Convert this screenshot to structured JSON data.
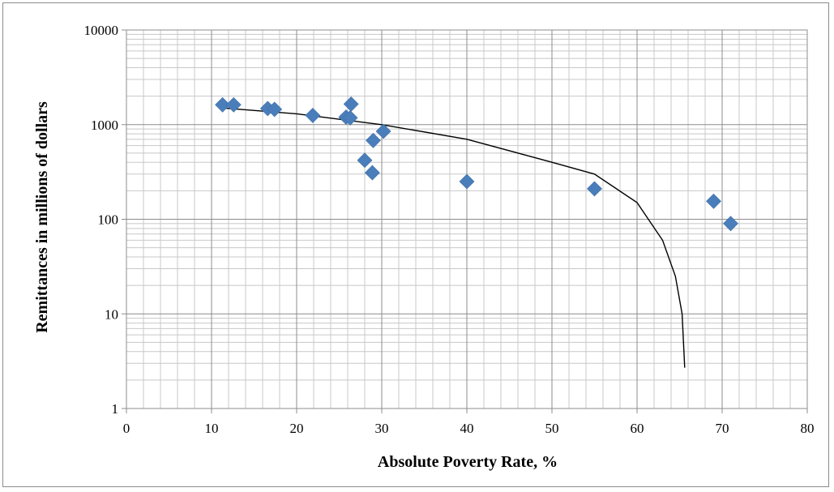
{
  "chart_data": {
    "type": "scatter",
    "title": "",
    "xlabel": "Absolute Poverty Rate, %",
    "ylabel": "Remittances in millions  of dollars",
    "xlim": [
      0,
      80
    ],
    "ylim": [
      1,
      10000
    ],
    "y_scale": "log",
    "x_ticks": [
      "0",
      "10",
      "20",
      "30",
      "40",
      "50",
      "60",
      "70",
      "80"
    ],
    "y_ticks": [
      "1",
      "10",
      "100",
      "1000",
      "10000"
    ],
    "grid": true,
    "legend": "none",
    "marker": "diamond",
    "marker_color": "#4a7ebb",
    "trendline_color": "#000000",
    "series": [
      {
        "points": [
          [
            11.3,
            1620
          ],
          [
            12.6,
            1620
          ],
          [
            16.6,
            1480
          ],
          [
            17.4,
            1450
          ],
          [
            21.9,
            1250
          ],
          [
            25.8,
            1200
          ],
          [
            26.3,
            1180
          ],
          [
            26.4,
            1650
          ],
          [
            28.0,
            420
          ],
          [
            28.9,
            310
          ],
          [
            29.0,
            680
          ],
          [
            30.2,
            850
          ],
          [
            40.0,
            250
          ],
          [
            55.0,
            210
          ],
          [
            69.0,
            155
          ],
          [
            71.0,
            90
          ]
        ]
      }
    ],
    "trendline": {
      "points": [
        [
          11.3,
          1500
        ],
        [
          20,
          1300
        ],
        [
          30,
          1000
        ],
        [
          40,
          700
        ],
        [
          50,
          400
        ],
        [
          55,
          300
        ],
        [
          60,
          150
        ],
        [
          63,
          60
        ],
        [
          64.5,
          25
        ],
        [
          65.3,
          10
        ],
        [
          65.6,
          2.7
        ]
      ]
    }
  }
}
